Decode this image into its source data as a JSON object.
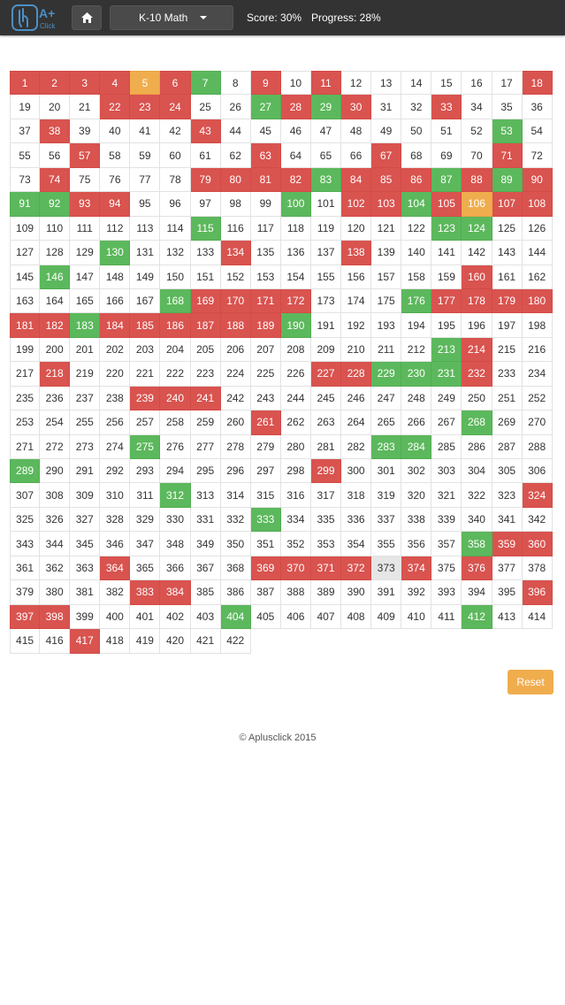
{
  "header": {
    "logo_text": "A+",
    "logo_subtext": "Click",
    "grade_label": "K-10 Math",
    "score_text": "Score: 30%",
    "progress_text": "Progress: 28%"
  },
  "grid": {
    "numbers": [
      1,
      2,
      3,
      4,
      5,
      6,
      7,
      8,
      9,
      10,
      11,
      12,
      13,
      14,
      15,
      16,
      17,
      18,
      19,
      20,
      21,
      22,
      23,
      24,
      25,
      26,
      27,
      28,
      29,
      30,
      31,
      32,
      33,
      34,
      35,
      36,
      37,
      38,
      39,
      40,
      41,
      42,
      43,
      44,
      45,
      46,
      47,
      48,
      49,
      50,
      51,
      52,
      53,
      54,
      55,
      56,
      57,
      58,
      59,
      60,
      61,
      62,
      63,
      64,
      65,
      66,
      67,
      68,
      69,
      70,
      71,
      72,
      73,
      74,
      75,
      76,
      77,
      78,
      79,
      80,
      81,
      82,
      83,
      84,
      85,
      86,
      87,
      88,
      89,
      90,
      91,
      92,
      93,
      94,
      95,
      96,
      97,
      98,
      99,
      100,
      101,
      102,
      103,
      104,
      105,
      106,
      107,
      108,
      109,
      110,
      111,
      112,
      113,
      114,
      115,
      116,
      117,
      118,
      119,
      120,
      121,
      122,
      123,
      124,
      125,
      126,
      127,
      128,
      129,
      130,
      131,
      132,
      133,
      134,
      135,
      136,
      137,
      138,
      139,
      140,
      141,
      142,
      143,
      144,
      145,
      146,
      147,
      148,
      149,
      150,
      151,
      152,
      153,
      154,
      155,
      156,
      157,
      158,
      159,
      160,
      161,
      162,
      163,
      164,
      165,
      166,
      167,
      168,
      169,
      170,
      171,
      172,
      173,
      174,
      175,
      176,
      177,
      178,
      179,
      180,
      181,
      182,
      183,
      184,
      185,
      186,
      187,
      188,
      189,
      190,
      191,
      192,
      193,
      194,
      195,
      196,
      197,
      198,
      199,
      200,
      201,
      202,
      203,
      204,
      205,
      206,
      207,
      208,
      209,
      210,
      211,
      212,
      213,
      214,
      215,
      216,
      217,
      218,
      219,
      220,
      221,
      222,
      223,
      224,
      225,
      226,
      227,
      228,
      229,
      230,
      231,
      232,
      233,
      234,
      235,
      236,
      237,
      238,
      239,
      240,
      241,
      242,
      243,
      244,
      245,
      246,
      247,
      248,
      249,
      250,
      251,
      252,
      253,
      254,
      255,
      256,
      257,
      258,
      259,
      260,
      261,
      262,
      263,
      264,
      265,
      266,
      267,
      268,
      269,
      270,
      271,
      272,
      273,
      274,
      275,
      276,
      277,
      278,
      279,
      280,
      281,
      282,
      283,
      284,
      285,
      286,
      287,
      288,
      289,
      290,
      291,
      292,
      293,
      294,
      295,
      296,
      297,
      298,
      299,
      300,
      301,
      302,
      303,
      304,
      305,
      306,
      307,
      308,
      309,
      310,
      311,
      312,
      313,
      314,
      315,
      316,
      317,
      318,
      319,
      320,
      321,
      322,
      323,
      324,
      325,
      326,
      327,
      328,
      329,
      330,
      331,
      332,
      333,
      334,
      335,
      336,
      337,
      338,
      339,
      340,
      341,
      342,
      343,
      344,
      345,
      346,
      347,
      348,
      349,
      350,
      351,
      352,
      353,
      354,
      355,
      356,
      357,
      358,
      359,
      360,
      361,
      362,
      363,
      364,
      365,
      366,
      367,
      368,
      369,
      370,
      371,
      372,
      373,
      374,
      375,
      376,
      377,
      378,
      379,
      380,
      381,
      382,
      383,
      384,
      385,
      386,
      387,
      388,
      389,
      390,
      391,
      392,
      393,
      394,
      395,
      396,
      397,
      398,
      399,
      400,
      401,
      402,
      403,
      404,
      405,
      406,
      407,
      408,
      409,
      410,
      411,
      412,
      413,
      414,
      415,
      416,
      417,
      418,
      419,
      420,
      421,
      422
    ],
    "red": [
      1,
      2,
      3,
      4,
      6,
      9,
      11,
      18,
      22,
      23,
      24,
      28,
      30,
      33,
      38,
      43,
      57,
      63,
      67,
      71,
      74,
      79,
      80,
      81,
      82,
      84,
      85,
      86,
      88,
      90,
      93,
      94,
      102,
      103,
      105,
      107,
      108,
      134,
      138,
      160,
      169,
      170,
      171,
      172,
      177,
      178,
      179,
      180,
      181,
      182,
      184,
      185,
      186,
      187,
      188,
      189,
      214,
      218,
      227,
      228,
      232,
      239,
      240,
      241,
      261,
      299,
      324,
      359,
      360,
      364,
      369,
      370,
      371,
      372,
      374,
      376,
      383,
      384,
      396,
      397,
      398,
      417
    ],
    "green": [
      7,
      27,
      29,
      53,
      83,
      87,
      89,
      91,
      92,
      100,
      104,
      115,
      123,
      124,
      130,
      146,
      168,
      176,
      183,
      190,
      213,
      229,
      230,
      231,
      268,
      275,
      283,
      284,
      289,
      312,
      333,
      358,
      404,
      412
    ],
    "orange": [
      5,
      106
    ],
    "grey": [
      373
    ],
    "colors": {
      "red": "#d9534f",
      "green": "#5cb85c",
      "orange": "#f0ad4e",
      "grey": "#e6e6e6"
    }
  },
  "actions": {
    "reset_label": "Reset"
  },
  "footer": {
    "copyright": "© Aplusclick 2015"
  },
  "icons": {
    "home": "home-icon",
    "caret": "caret-down-icon",
    "logo": "aplusclick-logo"
  }
}
